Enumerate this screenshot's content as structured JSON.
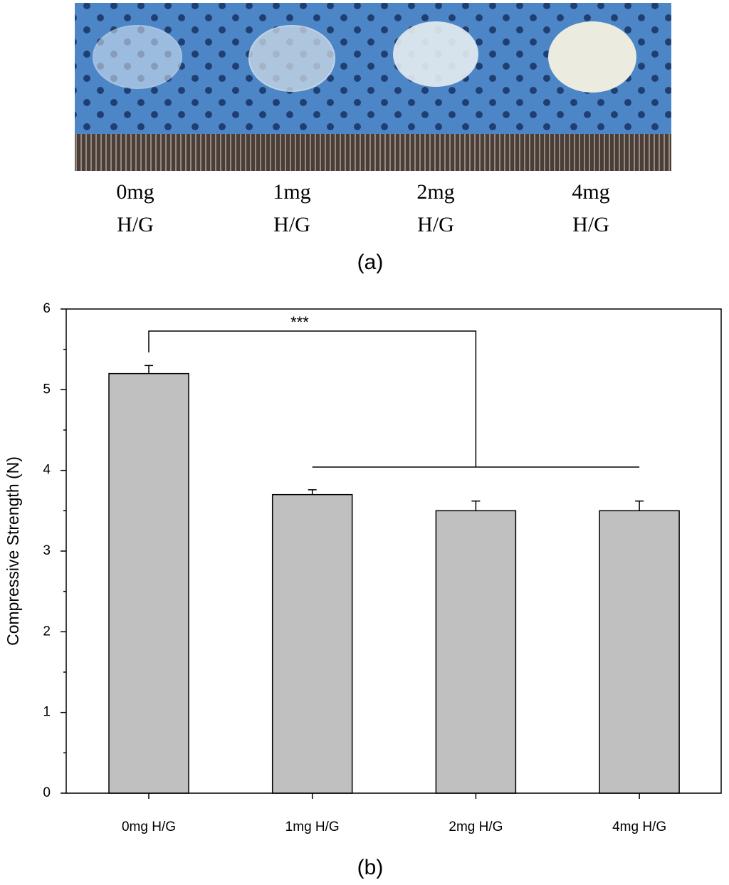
{
  "photo": {
    "labels": [
      [
        "0mg",
        "H/G"
      ],
      [
        "1mg",
        "H/G"
      ],
      [
        "2mg",
        "H/G"
      ],
      [
        "4mg",
        "H/G"
      ]
    ],
    "caption": "(a)"
  },
  "chart_data": {
    "type": "bar",
    "ylabel": "Compressive Strength (N)",
    "categories": [
      "0mg H/G",
      "1mg H/G",
      "2mg H/G",
      "4mg H/G"
    ],
    "values": [
      5.2,
      3.7,
      3.5,
      3.5
    ],
    "errors": [
      0.1,
      0.06,
      0.12,
      0.12
    ],
    "color": "#c0c0c0",
    "ylim": [
      0,
      6
    ],
    "yticks": [
      0,
      1,
      2,
      3,
      4,
      5,
      6
    ],
    "annotation": "***",
    "caption": "(b)"
  }
}
